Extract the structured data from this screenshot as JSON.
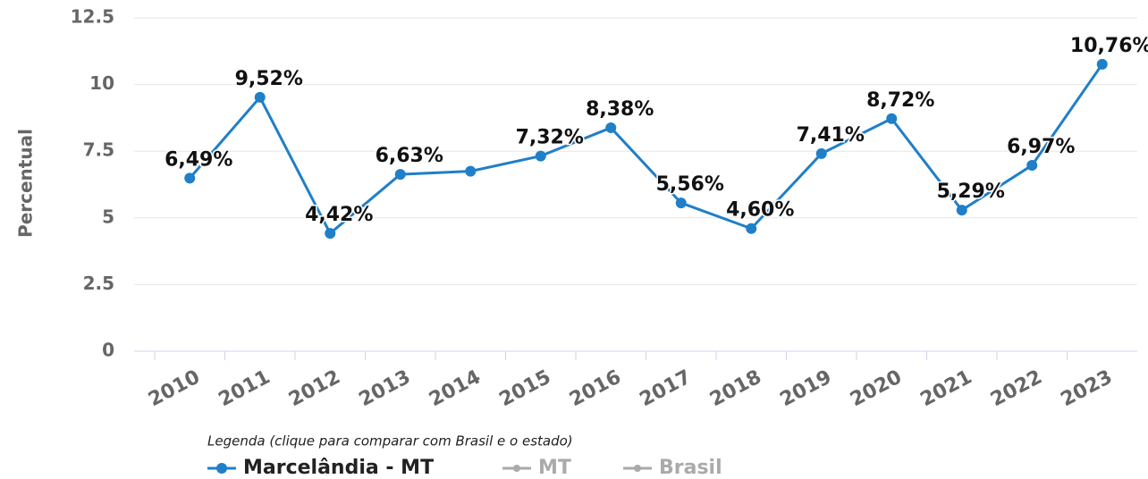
{
  "chart_data": {
    "type": "line",
    "y_label": "Percentual",
    "categories": [
      "2010",
      "2011",
      "2012",
      "2013",
      "2014",
      "2015",
      "2016",
      "2017",
      "2018",
      "2019",
      "2020",
      "2021",
      "2022",
      "2023"
    ],
    "series": [
      {
        "name": "Marcelândia - MT",
        "color": "#1f7fc8",
        "values": [
          6.49,
          9.52,
          4.42,
          6.63,
          6.75,
          7.32,
          8.38,
          5.56,
          4.6,
          7.41,
          8.72,
          5.29,
          6.97,
          10.76
        ],
        "value_labels": [
          "6,49%",
          "9,52%",
          "4,42%",
          "6,63%",
          null,
          "7,32%",
          "8,38%",
          "5,56%",
          "4,60%",
          "7,41%",
          "8,72%",
          "5,29%",
          "6,97%",
          "10,76%"
        ]
      }
    ],
    "legend_title": "Legenda (clique para comparar com Brasil e o estado)",
    "legend": [
      {
        "name": "Marcelândia - MT",
        "color": "#1f7fc8"
      },
      {
        "name": "MT",
        "color": "#aaaaaa"
      },
      {
        "name": "Brasil",
        "color": "#aaaaaa"
      }
    ],
    "ylim": [
      0,
      12.5
    ],
    "yticks": [
      0,
      2.5,
      5,
      7.5,
      10,
      12.5
    ],
    "grid": true
  }
}
